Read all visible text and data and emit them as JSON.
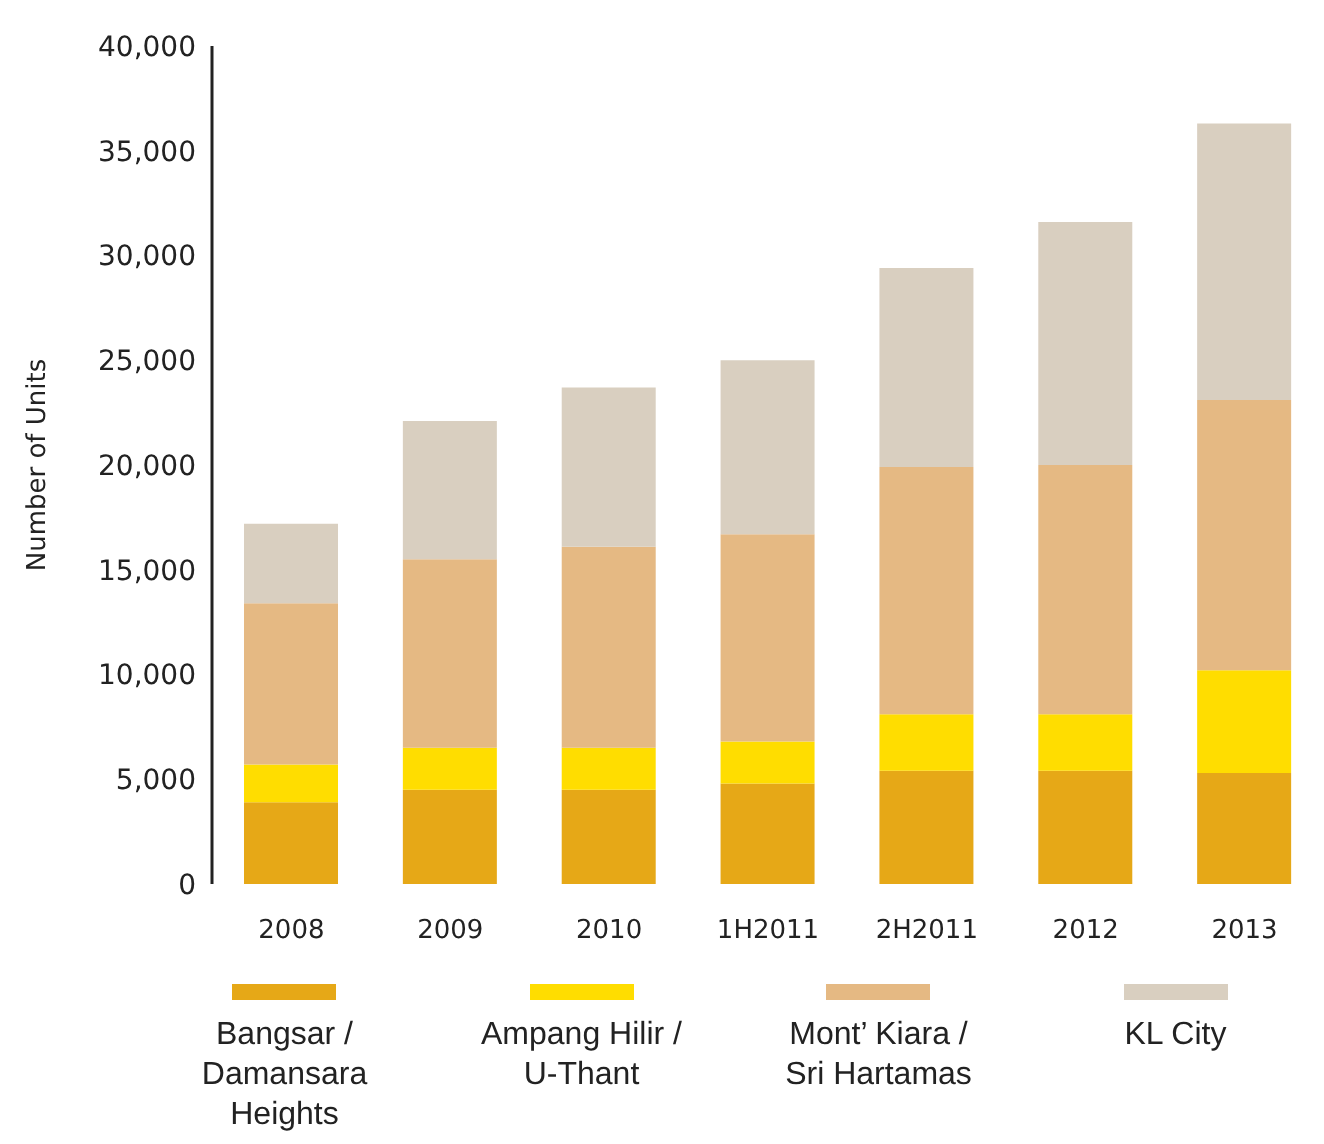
{
  "chart_data": {
    "type": "bar",
    "stacked": true,
    "ylabel": "Number of Units",
    "categories": [
      "2008",
      "2009",
      "2010",
      "1H2011",
      "2H2011",
      "2012",
      "2013"
    ],
    "series": [
      {
        "name": "Bangsar / Damansara Heights",
        "color": "#e6a817",
        "values": [
          3900,
          4500,
          4500,
          4800,
          5400,
          5400,
          5300
        ]
      },
      {
        "name": "Ampang Hilir / U-Thant",
        "color": "#ffdd00",
        "values": [
          1800,
          2000,
          2000,
          2000,
          2700,
          2700,
          4900
        ]
      },
      {
        "name": "Mont’ Kiara / Sri Hartamas",
        "color": "#e5b983",
        "values": [
          7700,
          9000,
          9600,
          9900,
          11800,
          11900,
          12900
        ]
      },
      {
        "name": "KL City",
        "color": "#d9cfc0",
        "values": [
          3800,
          6600,
          7600,
          8300,
          9500,
          11600,
          13200
        ]
      }
    ],
    "ylim": [
      0,
      40000
    ],
    "yticks": [
      0,
      {
        "value": 5000,
        "label": "5,000"
      },
      {
        "value": 10000,
        "label": "10,000"
      },
      {
        "value": 15000,
        "label": "15,000"
      },
      {
        "value": 20000,
        "label": "20,000"
      },
      {
        "value": 25000,
        "label": "25,000"
      },
      {
        "value": 30000,
        "label": "30,000"
      },
      {
        "value": 35000,
        "label": "35,000"
      },
      {
        "value": 40000,
        "label": "40,000"
      }
    ],
    "legend": "bottom"
  }
}
